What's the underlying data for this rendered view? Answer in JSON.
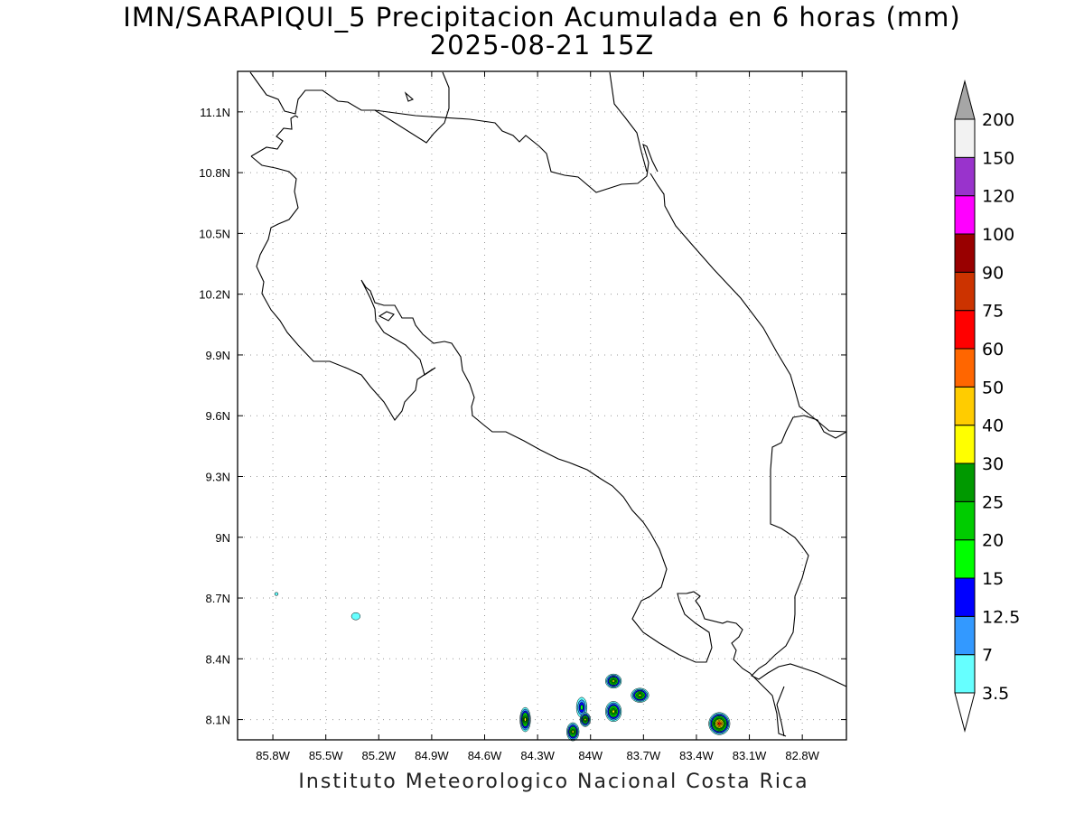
{
  "title": {
    "line1": "IMN/SARAPIQUI_5 Precipitacion Acumulada en 6 horas (mm)",
    "line2": "2025-08-21 15Z"
  },
  "footer": "Instituto Meteorologico Nacional Costa Rica",
  "chart_data": {
    "type": "heatmap",
    "title": "IMN/SARAPIQUI_5 Precipitacion Acumulada en 6 horas (mm)",
    "subtitle": "2025-08-21 15Z",
    "xlim": [
      -86.0,
      -82.55
    ],
    "ylim": [
      8.0,
      11.3
    ],
    "x_ticks": [
      "85.8W",
      "85.5W",
      "85.2W",
      "84.9W",
      "84.6W",
      "84.3W",
      "84W",
      "83.7W",
      "83.4W",
      "83.1W",
      "82.8W"
    ],
    "x_tick_values": [
      -85.8,
      -85.5,
      -85.2,
      -84.9,
      -84.6,
      -84.3,
      -84.0,
      -83.7,
      -83.4,
      -83.1,
      -82.8
    ],
    "y_ticks": [
      "8.1N",
      "8.4N",
      "8.7N",
      "9N",
      "9.3N",
      "9.6N",
      "9.9N",
      "10.2N",
      "10.5N",
      "10.8N",
      "11.1N"
    ],
    "y_tick_values": [
      8.1,
      8.4,
      8.7,
      9.0,
      9.3,
      9.6,
      9.9,
      10.2,
      10.5,
      10.8,
      11.1
    ],
    "grid": true,
    "colorbar": {
      "levels": [
        "3.5",
        "7",
        "12.5",
        "15",
        "20",
        "25",
        "30",
        "40",
        "50",
        "60",
        "75",
        "90",
        "100",
        "120",
        "150",
        "200"
      ],
      "colors": [
        "#66ffff",
        "#3399ff",
        "#0000ff",
        "#00ff00",
        "#00cc00",
        "#009900",
        "#ffff00",
        "#ffcc00",
        "#ff6600",
        "#ff0000",
        "#cc3300",
        "#990000",
        "#ff00ff",
        "#9933cc",
        "#f2f2f2"
      ],
      "extend_top_color": "#a6a6a6",
      "extend_bottom_color": "#ffffff"
    },
    "rain_cells": [
      {
        "lon": -84.37,
        "lat": 8.1,
        "peak": 30,
        "rx": 0.03,
        "ry": 0.06
      },
      {
        "lon": -84.1,
        "lat": 8.04,
        "peak": 30,
        "rx": 0.035,
        "ry": 0.045
      },
      {
        "lon": -84.05,
        "lat": 8.16,
        "peak": 15,
        "rx": 0.03,
        "ry": 0.05
      },
      {
        "lon": -84.03,
        "lat": 8.1,
        "peak": 30,
        "rx": 0.03,
        "ry": 0.035
      },
      {
        "lon": -83.87,
        "lat": 8.29,
        "peak": 30,
        "rx": 0.045,
        "ry": 0.035
      },
      {
        "lon": -83.87,
        "lat": 8.14,
        "peak": 30,
        "rx": 0.045,
        "ry": 0.05
      },
      {
        "lon": -83.72,
        "lat": 8.22,
        "peak": 30,
        "rx": 0.05,
        "ry": 0.035
      },
      {
        "lon": -83.27,
        "lat": 8.08,
        "peak": 60,
        "rx": 0.06,
        "ry": 0.055
      },
      {
        "lon": -85.33,
        "lat": 8.61,
        "peak": 3.5,
        "rx": 0.025,
        "ry": 0.018
      },
      {
        "lon": -85.78,
        "lat": 8.72,
        "peak": 3.5,
        "rx": 0.01,
        "ry": 0.008
      }
    ]
  }
}
